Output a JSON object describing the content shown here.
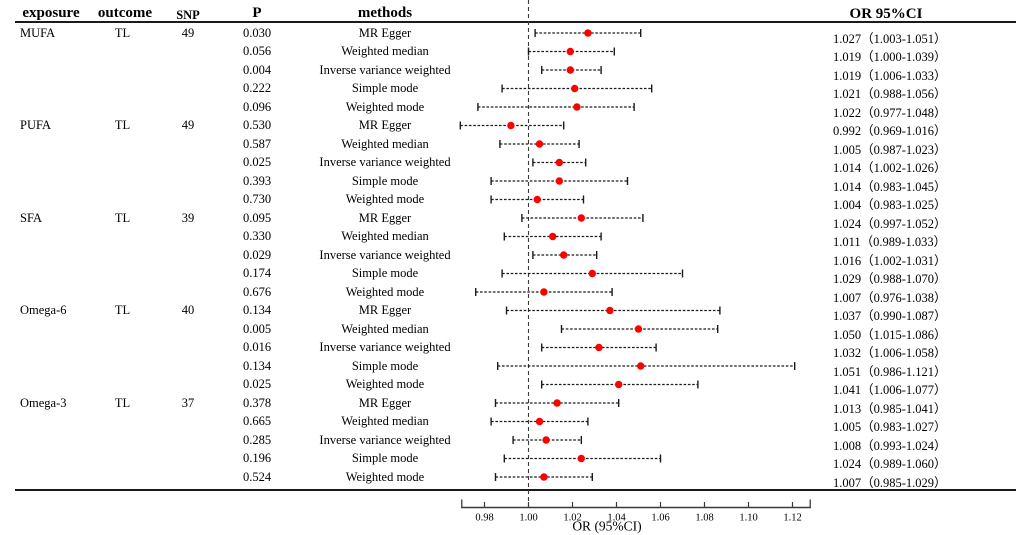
{
  "header": {
    "exposure": "exposure",
    "outcome": "outcome",
    "snp": "SNP",
    "p": "P",
    "methods": "methods",
    "or_ci": "OR 95%CI"
  },
  "colors": {
    "point": "#ff0000",
    "error_bar": "#1b1b1b",
    "reference_line": "#3a3a3a",
    "axis": "#3a3a3a",
    "text": "#000000"
  },
  "chart_data": {
    "type": "scatter",
    "subtype": "forest-plot",
    "xlabel": "OR (95%CI)",
    "xlim": [
      0.97,
      1.13
    ],
    "x_ticks": [
      0.98,
      1.0,
      1.02,
      1.04,
      1.06,
      1.08,
      1.1,
      1.12
    ],
    "x_tick_labels": [
      "0.98",
      "1.00",
      "1.02",
      "1.04",
      "1.06",
      "1.08",
      "1.10",
      "1.12"
    ],
    "reference_line_x": 1.0,
    "grid": false,
    "groups": [
      {
        "exposure": "MUFA",
        "outcome": "TL",
        "snp": "49",
        "rows": [
          {
            "p": "0.030",
            "method": "MR Egger",
            "or": 1.027,
            "ci_low": 1.003,
            "ci_high": 1.051,
            "or_ci": "1.027（1.003-1.051）"
          },
          {
            "p": "0.056",
            "method": "Weighted median",
            "or": 1.019,
            "ci_low": 1.0,
            "ci_high": 1.039,
            "or_ci": "1.019（1.000-1.039）"
          },
          {
            "p": "0.004",
            "method": "Inverse variance weighted",
            "or": 1.019,
            "ci_low": 1.006,
            "ci_high": 1.033,
            "or_ci": "1.019（1.006-1.033）"
          },
          {
            "p": "0.222",
            "method": "Simple mode",
            "or": 1.021,
            "ci_low": 0.988,
            "ci_high": 1.056,
            "or_ci": "1.021（0.988-1.056）"
          },
          {
            "p": "0.096",
            "method": "Weighted mode",
            "or": 1.022,
            "ci_low": 0.977,
            "ci_high": 1.048,
            "or_ci": "1.022（0.977-1.048）"
          }
        ]
      },
      {
        "exposure": "PUFA",
        "outcome": "TL",
        "snp": "49",
        "rows": [
          {
            "p": "0.530",
            "method": "MR Egger",
            "or": 0.992,
            "ci_low": 0.969,
            "ci_high": 1.016,
            "or_ci": "0.992（0.969-1.016）"
          },
          {
            "p": "0.587",
            "method": "Weighted median",
            "or": 1.005,
            "ci_low": 0.987,
            "ci_high": 1.023,
            "or_ci": "1.005（0.987-1.023）"
          },
          {
            "p": "0.025",
            "method": "Inverse variance weighted",
            "or": 1.014,
            "ci_low": 1.002,
            "ci_high": 1.026,
            "or_ci": "1.014（1.002-1.026）"
          },
          {
            "p": "0.393",
            "method": "Simple mode",
            "or": 1.014,
            "ci_low": 0.983,
            "ci_high": 1.045,
            "or_ci": "1.014（0.983-1.045）"
          },
          {
            "p": "0.730",
            "method": "Weighted mode",
            "or": 1.004,
            "ci_low": 0.983,
            "ci_high": 1.025,
            "or_ci": "1.004（0.983-1.025）"
          }
        ]
      },
      {
        "exposure": "SFA",
        "outcome": "TL",
        "snp": "39",
        "rows": [
          {
            "p": "0.095",
            "method": "MR Egger",
            "or": 1.024,
            "ci_low": 0.997,
            "ci_high": 1.052,
            "or_ci": "1.024（0.997-1.052）"
          },
          {
            "p": "0.330",
            "method": "Weighted median",
            "or": 1.011,
            "ci_low": 0.989,
            "ci_high": 1.033,
            "or_ci": "1.011（0.989-1.033）"
          },
          {
            "p": "0.029",
            "method": "Inverse variance weighted",
            "or": 1.016,
            "ci_low": 1.002,
            "ci_high": 1.031,
            "or_ci": "1.016（1.002-1.031）"
          },
          {
            "p": "0.174",
            "method": "Simple mode",
            "or": 1.029,
            "ci_low": 0.988,
            "ci_high": 1.07,
            "or_ci": "1.029（0.988-1.070）"
          },
          {
            "p": "0.676",
            "method": "Weighted mode",
            "or": 1.007,
            "ci_low": 0.976,
            "ci_high": 1.038,
            "or_ci": "1.007（0.976-1.038）"
          }
        ]
      },
      {
        "exposure": "Omega-6",
        "outcome": "TL",
        "snp": "40",
        "rows": [
          {
            "p": "0.134",
            "method": "MR Egger",
            "or": 1.037,
            "ci_low": 0.99,
            "ci_high": 1.087,
            "or_ci": "1.037（0.990-1.087）"
          },
          {
            "p": "0.005",
            "method": "Weighted median",
            "or": 1.05,
            "ci_low": 1.015,
            "ci_high": 1.086,
            "or_ci": "1.050（1.015-1.086）"
          },
          {
            "p": "0.016",
            "method": "Inverse variance weighted",
            "or": 1.032,
            "ci_low": 1.006,
            "ci_high": 1.058,
            "or_ci": "1.032（1.006-1.058）"
          },
          {
            "p": "0.134",
            "method": "Simple mode",
            "or": 1.051,
            "ci_low": 0.986,
            "ci_high": 1.121,
            "or_ci": "1.051（0.986-1.121）"
          },
          {
            "p": "0.025",
            "method": "Weighted mode",
            "or": 1.041,
            "ci_low": 1.006,
            "ci_high": 1.077,
            "or_ci": "1.041（1.006-1.077）"
          }
        ]
      },
      {
        "exposure": "Omega-3",
        "outcome": "TL",
        "snp": "37",
        "rows": [
          {
            "p": "0.378",
            "method": "MR Egger",
            "or": 1.013,
            "ci_low": 0.985,
            "ci_high": 1.041,
            "or_ci": "1.013（0.985-1.041）"
          },
          {
            "p": "0.665",
            "method": "Weighted median",
            "or": 1.005,
            "ci_low": 0.983,
            "ci_high": 1.027,
            "or_ci": "1.005（0.983-1.027）"
          },
          {
            "p": "0.285",
            "method": "Inverse variance weighted",
            "or": 1.008,
            "ci_low": 0.993,
            "ci_high": 1.024,
            "or_ci": "1.008（0.993-1.024）"
          },
          {
            "p": "0.196",
            "method": "Simple mode",
            "or": 1.024,
            "ci_low": 0.989,
            "ci_high": 1.06,
            "or_ci": "1.024（0.989-1.060）"
          },
          {
            "p": "0.524",
            "method": "Weighted mode",
            "or": 1.007,
            "ci_low": 0.985,
            "ci_high": 1.029,
            "or_ci": "1.007（0.985-1.029）"
          }
        ]
      }
    ]
  }
}
